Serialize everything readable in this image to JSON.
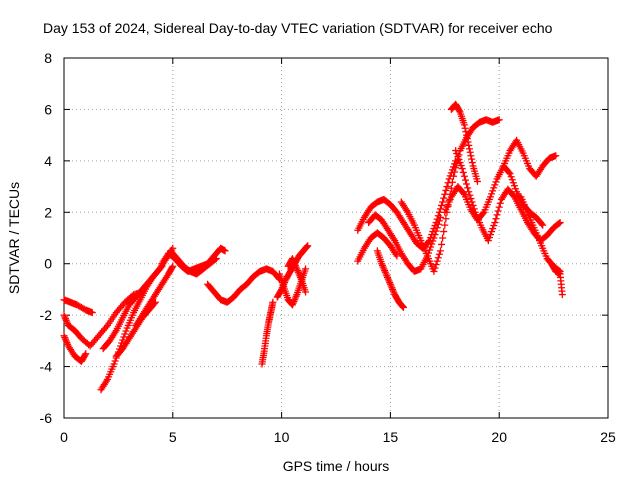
{
  "chart_data": {
    "type": "scatter",
    "title": "Day 153 of 2024, Sidereal Day-to-day VTEC variation (SDTVAR) for receiver echo",
    "xlabel": "GPS time / hours",
    "ylabel": "SDTVAR / TECUs",
    "xlim": [
      0,
      25
    ],
    "ylim": [
      -6,
      8
    ],
    "xticks": [
      0,
      5,
      10,
      15,
      20,
      25
    ],
    "yticks": [
      -6,
      -4,
      -2,
      0,
      2,
      4,
      6,
      8
    ],
    "grid": true,
    "marker": "plus",
    "series_color": "#ff0000",
    "series": [
      {
        "x": [
          0.0,
          0.3,
          0.6,
          1.0,
          1.3
        ],
        "y": [
          -1.4,
          -1.5,
          -1.6,
          -1.8,
          -1.9
        ]
      },
      {
        "x": [
          0.0,
          0.2,
          0.5,
          0.8,
          1.2,
          1.6,
          2.0,
          2.4,
          2.8,
          3.2,
          3.6
        ],
        "y": [
          -2.0,
          -2.4,
          -2.6,
          -2.9,
          -3.2,
          -2.8,
          -2.4,
          -1.9,
          -1.5,
          -1.2,
          -1.1
        ]
      },
      {
        "x": [
          0.0,
          0.2,
          0.5,
          0.8,
          1.0
        ],
        "y": [
          -2.8,
          -3.2,
          -3.6,
          -3.8,
          -3.5
        ]
      },
      {
        "x": [
          1.7,
          2.0,
          2.3,
          2.6,
          2.9,
          3.2,
          3.5,
          3.8,
          4.1,
          4.4,
          4.7,
          5.0
        ],
        "y": [
          -4.9,
          -4.5,
          -3.9,
          -3.2,
          -2.5,
          -1.9,
          -1.4,
          -0.9,
          -0.5,
          -0.2,
          0.2,
          0.6
        ]
      },
      {
        "x": [
          1.8,
          2.1,
          2.4,
          2.7,
          3.0,
          3.3,
          3.6,
          3.9,
          4.2,
          4.5
        ],
        "y": [
          -3.3,
          -3.0,
          -2.6,
          -2.1,
          -1.6,
          -1.3,
          -1.0,
          -0.7,
          -0.4,
          -0.1
        ]
      },
      {
        "x": [
          2.4,
          2.7,
          3.0,
          3.3,
          3.6,
          3.9,
          4.2
        ],
        "y": [
          -3.6,
          -3.3,
          -2.9,
          -2.5,
          -2.1,
          -1.8,
          -1.5
        ]
      },
      {
        "x": [
          3.3,
          3.6,
          3.9,
          4.2,
          4.5,
          4.8,
          5.0
        ],
        "y": [
          -2.4,
          -2.0,
          -1.6,
          -1.2,
          -0.8,
          -0.4,
          -0.1
        ]
      },
      {
        "x": [
          4.5,
          4.8,
          5.1,
          5.4,
          5.7,
          6.0,
          6.3,
          6.6,
          6.9,
          7.2,
          7.4
        ],
        "y": [
          0.0,
          0.4,
          0.2,
          -0.1,
          -0.3,
          -0.2,
          -0.1,
          0.0,
          0.3,
          0.6,
          0.5
        ]
      },
      {
        "x": [
          4.9,
          5.2,
          5.5,
          5.8,
          6.1,
          6.4,
          6.7,
          7.0
        ],
        "y": [
          0.5,
          0.2,
          -0.1,
          -0.3,
          -0.4,
          -0.2,
          0.0,
          0.2
        ]
      },
      {
        "x": [
          6.6,
          6.9,
          7.2,
          7.5,
          7.8,
          8.1,
          8.4,
          8.7,
          9.0,
          9.3,
          9.6,
          9.9
        ],
        "y": [
          -0.8,
          -1.1,
          -1.4,
          -1.5,
          -1.3,
          -1.0,
          -0.8,
          -0.5,
          -0.3,
          -0.2,
          -0.3,
          -0.6
        ]
      },
      {
        "x": [
          9.1,
          9.2,
          9.3,
          9.4,
          9.5,
          9.6
        ],
        "y": [
          -3.9,
          -3.4,
          -2.8,
          -2.3,
          -1.9,
          -1.5
        ]
      },
      {
        "x": [
          9.8,
          10.0,
          10.2,
          10.4,
          10.6,
          10.8,
          11.0,
          11.2
        ],
        "y": [
          -1.3,
          -1.0,
          -0.6,
          -0.3,
          0.0,
          0.3,
          0.5,
          0.7
        ]
      },
      {
        "x": [
          9.9,
          10.1,
          10.3,
          10.5,
          10.7,
          10.9,
          11.1
        ],
        "y": [
          -0.4,
          -0.9,
          -1.4,
          -1.6,
          -1.2,
          -0.7,
          -0.2
        ]
      },
      {
        "x": [
          10.3,
          10.5,
          10.7,
          10.9,
          11.1
        ],
        "y": [
          -0.1,
          0.2,
          -0.2,
          -0.6,
          -1.1
        ]
      },
      {
        "x": [
          13.5,
          13.8,
          14.1,
          14.4,
          14.7,
          15.0,
          15.3,
          15.6,
          15.9,
          16.2,
          16.5,
          16.8,
          17.1,
          17.4,
          17.7,
          18.0
        ],
        "y": [
          1.3,
          1.8,
          2.2,
          2.4,
          2.5,
          2.3,
          2.0,
          1.6,
          1.2,
          0.8,
          0.6,
          0.9,
          1.6,
          2.4,
          3.3,
          4.0
        ]
      },
      {
        "x": [
          13.5,
          13.8,
          14.1,
          14.4,
          14.7,
          15.0,
          15.3
        ],
        "y": [
          0.1,
          0.6,
          1.0,
          1.2,
          1.0,
          0.7,
          0.3
        ]
      },
      {
        "x": [
          14.4,
          14.6,
          14.8,
          15.0,
          15.2,
          15.4,
          15.6
        ],
        "y": [
          0.5,
          0.0,
          -0.4,
          -0.8,
          -1.2,
          -1.5,
          -1.7
        ]
      },
      {
        "x": [
          14.0,
          14.3,
          14.6,
          14.9,
          15.2,
          15.5,
          15.8,
          16.1,
          16.4,
          16.7,
          17.0,
          17.3
        ],
        "y": [
          1.6,
          1.9,
          1.7,
          1.3,
          0.9,
          0.4,
          0.0,
          -0.3,
          -0.2,
          0.3,
          1.0,
          1.8
        ]
      },
      {
        "x": [
          15.5,
          15.8,
          16.1,
          16.4,
          16.7,
          17.0,
          17.3,
          17.6,
          17.9,
          18.2,
          18.5,
          18.8,
          19.1,
          19.4,
          19.7,
          20.0
        ],
        "y": [
          2.4,
          2.0,
          1.5,
          0.9,
          0.3,
          -0.3,
          0.5,
          2.0,
          3.4,
          4.4,
          4.9,
          5.3,
          5.5,
          5.6,
          5.5,
          5.6
        ]
      },
      {
        "x": [
          17.8,
          18.0,
          18.2,
          18.4,
          18.6,
          18.8,
          19.0
        ],
        "y": [
          6.0,
          6.2,
          5.9,
          5.4,
          4.6,
          3.8,
          3.2
        ]
      },
      {
        "x": [
          17.5,
          17.8,
          18.1,
          18.4,
          18.7,
          19.0,
          19.3,
          19.6,
          19.9,
          20.2,
          20.5,
          20.8,
          21.1,
          21.4,
          21.7,
          22.0
        ],
        "y": [
          2.0,
          2.6,
          3.0,
          2.7,
          2.1,
          1.7,
          2.0,
          2.6,
          3.3,
          3.8,
          3.5,
          2.8,
          2.3,
          2.0,
          1.8,
          1.5
        ]
      },
      {
        "x": [
          18.0,
          18.3,
          18.6,
          18.9,
          19.2,
          19.5,
          19.8,
          20.1,
          20.4,
          20.7,
          21.0,
          21.3,
          21.6,
          21.9,
          22.2,
          22.5,
          22.8
        ],
        "y": [
          4.4,
          3.7,
          2.8,
          2.0,
          1.4,
          0.9,
          1.6,
          2.5,
          2.9,
          2.6,
          2.1,
          1.6,
          1.2,
          0.9,
          1.1,
          1.4,
          1.6
        ]
      },
      {
        "x": [
          20.2,
          20.5,
          20.8,
          21.1,
          21.4,
          21.7,
          22.0,
          22.3,
          22.6
        ],
        "y": [
          3.8,
          4.4,
          4.8,
          4.3,
          3.7,
          3.4,
          3.8,
          4.1,
          4.2
        ]
      },
      {
        "x": [
          21.0,
          21.3,
          21.6,
          21.9,
          22.2,
          22.5,
          22.8
        ],
        "y": [
          2.6,
          2.0,
          1.4,
          0.8,
          0.2,
          -0.1,
          -0.3
        ]
      },
      {
        "x": [
          22.4,
          22.6,
          22.8,
          22.9
        ],
        "y": [
          0.0,
          -0.3,
          -0.4,
          -1.2
        ]
      }
    ]
  }
}
